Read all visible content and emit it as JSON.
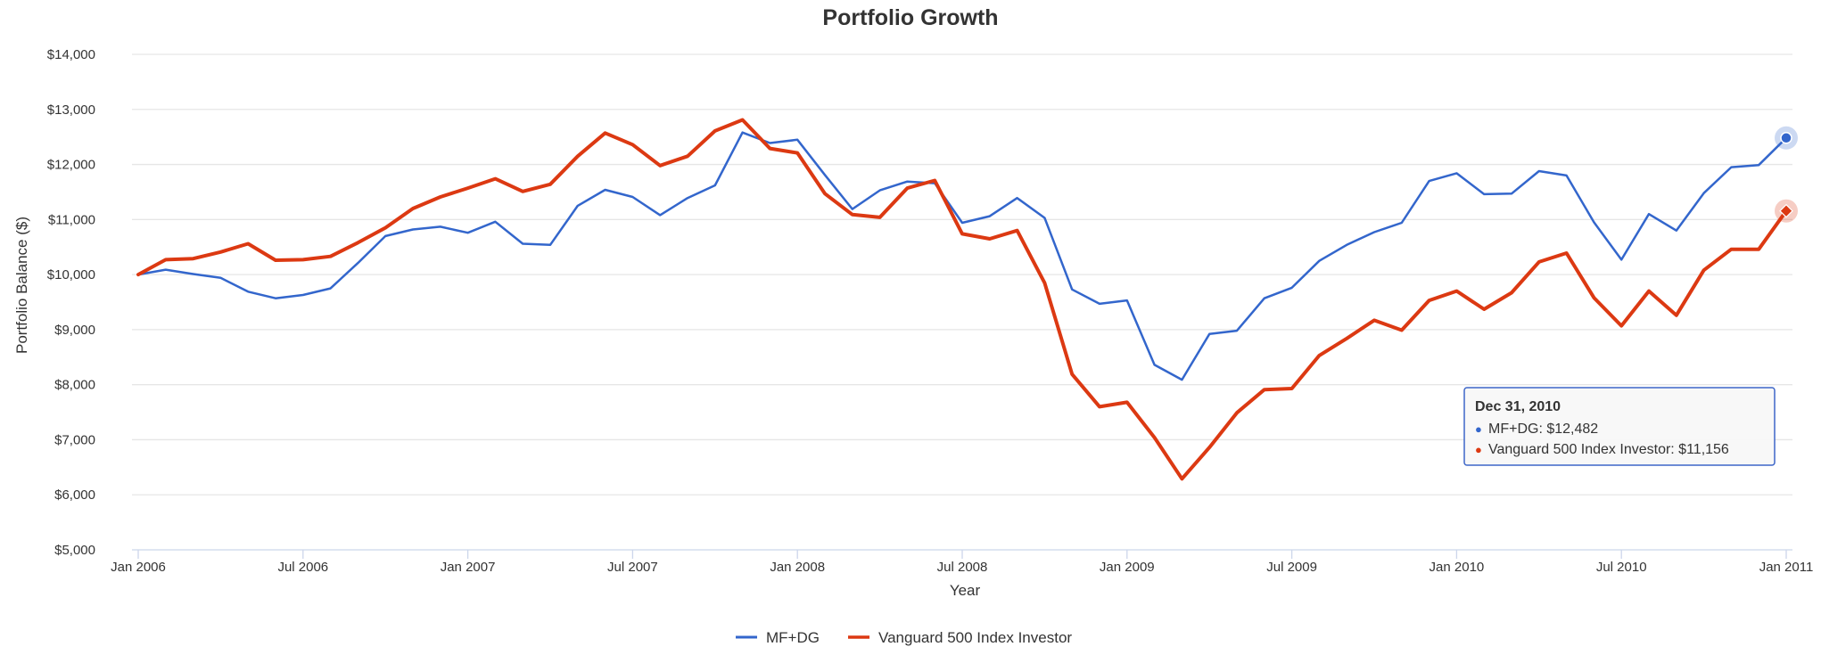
{
  "chart_data": {
    "type": "line",
    "title": "Portfolio Growth",
    "xlabel": "Year",
    "ylabel": "Portfolio Balance ($)",
    "ylim": [
      5000,
      14000
    ],
    "y_ticks": [
      5000,
      6000,
      7000,
      8000,
      9000,
      10000,
      11000,
      12000,
      13000,
      14000
    ],
    "y_tick_labels": [
      "$5,000",
      "$6,000",
      "$7,000",
      "$8,000",
      "$9,000",
      "$10,000",
      "$11,000",
      "$12,000",
      "$13,000",
      "$14,000"
    ],
    "x_ticks": [
      0,
      6,
      12,
      18,
      24,
      30,
      36,
      42,
      48,
      54,
      60
    ],
    "x_tick_labels": [
      "Jan 2006",
      "Jul 2006",
      "Jan 2007",
      "Jul 2007",
      "Jan 2008",
      "Jul 2008",
      "Jan 2009",
      "Jul 2009",
      "Jan 2010",
      "Jul 2010",
      "Jan 2011"
    ],
    "x_unit": "months since Jan 2006",
    "grid": true,
    "legend_position": "bottom-center",
    "series": [
      {
        "name": "MF+DG",
        "color": "#3366cc",
        "values": [
          10000,
          10090,
          10010,
          9940,
          9690,
          9570,
          9630,
          9750,
          10210,
          10700,
          10820,
          10870,
          10760,
          10960,
          10560,
          10540,
          11250,
          11540,
          11410,
          11080,
          11390,
          11620,
          12580,
          12390,
          12450,
          11810,
          11190,
          11530,
          11690,
          11660,
          10940,
          11060,
          11390,
          11030,
          9730,
          9470,
          9530,
          8360,
          8090,
          8920,
          8980,
          9570,
          9760,
          10250,
          10540,
          10770,
          10940,
          11700,
          11840,
          11460,
          11470,
          11880,
          11800,
          10950,
          10270,
          11100,
          10800,
          11480,
          11950,
          11990,
          12482
        ]
      },
      {
        "name": "Vanguard 500 Index Investor",
        "color": "#dc3912",
        "values": [
          10000,
          10270,
          10290,
          10410,
          10560,
          10260,
          10270,
          10330,
          10580,
          10850,
          11200,
          11410,
          11570,
          11740,
          11510,
          11640,
          12150,
          12570,
          12360,
          11980,
          12150,
          12610,
          12810,
          12290,
          12210,
          11470,
          11090,
          11040,
          11570,
          11710,
          10740,
          10650,
          10800,
          9850,
          8190,
          7600,
          7680,
          7040,
          6290,
          6860,
          7490,
          7910,
          7930,
          8530,
          8840,
          9170,
          8990,
          9530,
          9700,
          9370,
          9670,
          10230,
          10390,
          9580,
          9070,
          9700,
          9260,
          10080,
          10460,
          10460,
          11156
        ]
      }
    ],
    "tooltip": {
      "date": "Dec 31, 2010",
      "lines": [
        "MF+DG: $12,482",
        "Vanguard 500 Index Investor: $11,156"
      ]
    }
  }
}
